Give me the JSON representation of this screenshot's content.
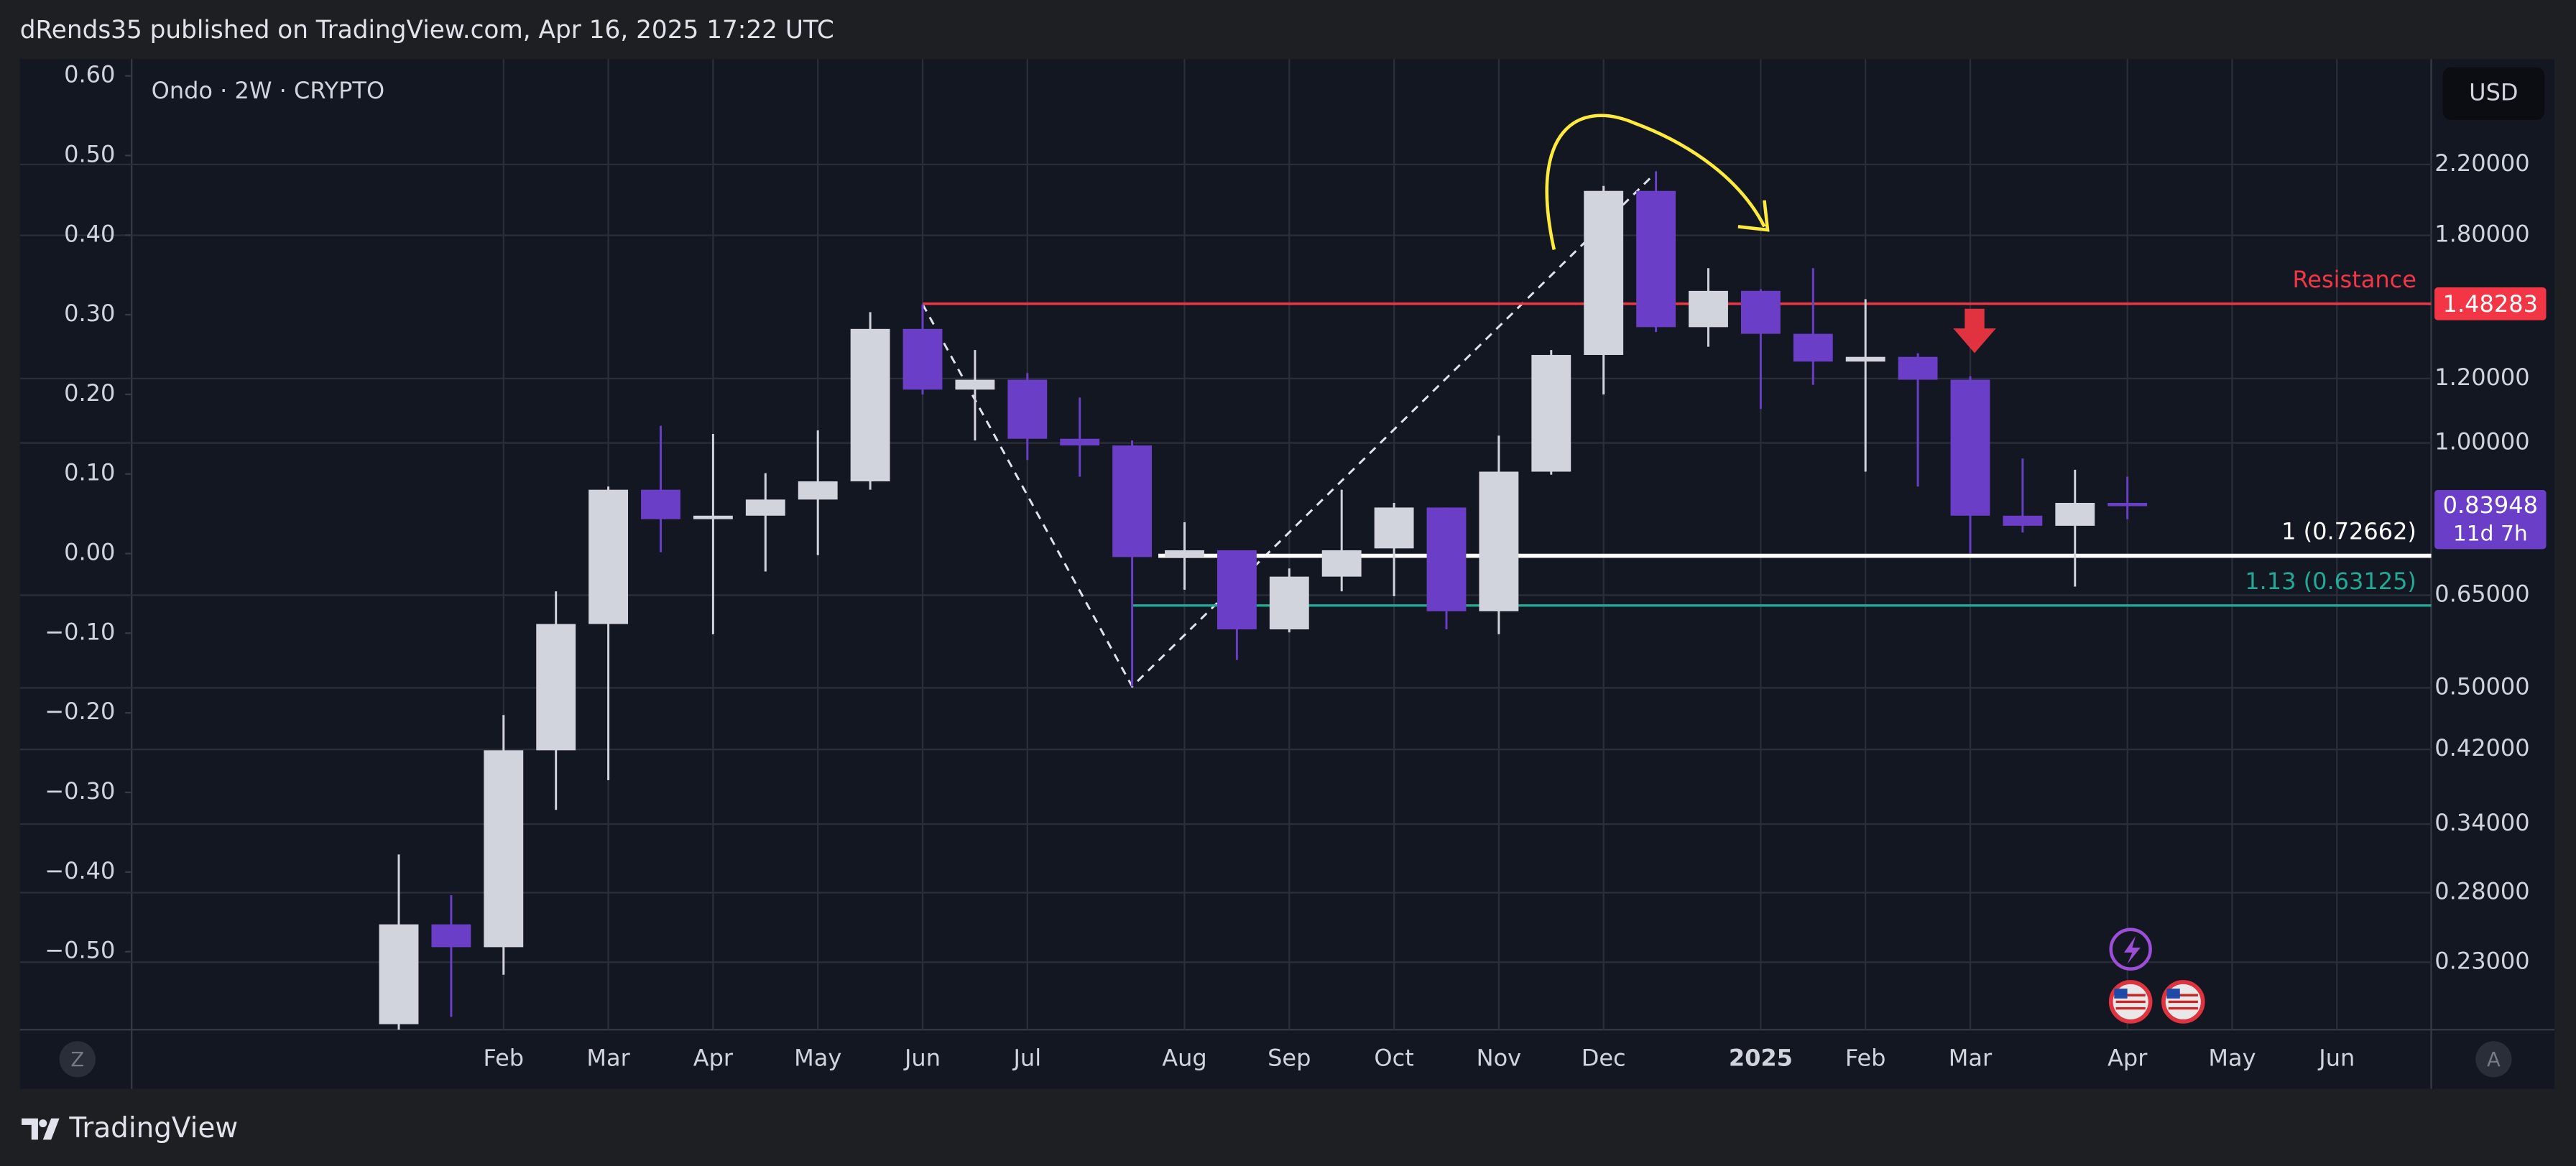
{
  "header": "dRends35 published on TradingView.com, Apr 16, 2025 17:22 UTC",
  "footer_brand": "TradingView",
  "buttons": {
    "left": "Z",
    "right": "A"
  },
  "chart_data": {
    "type": "candlestick",
    "title": "Ondo · 2W · CRYPTO",
    "currency": "USD",
    "categories": [
      null,
      null,
      null,
      null,
      null,
      null,
      null,
      null,
      null,
      null,
      null,
      null,
      null,
      null,
      null,
      null,
      null,
      null,
      null,
      null,
      null,
      null,
      null,
      null,
      null,
      null,
      null,
      null,
      null,
      null,
      null,
      null,
      null,
      null
    ],
    "open": [
      0.193,
      0.256,
      0.24,
      0.419,
      0.599,
      0.876,
      0.806,
      0.814,
      0.852,
      0.897,
      1.381,
      1.163,
      1.196,
      1.012,
      0.993,
      0.724,
      0.738,
      0.59,
      0.685,
      0.742,
      0.833,
      0.621,
      0.922,
      1.283,
      2.041,
      1.388,
      1.538,
      1.362,
      1.259,
      1.276,
      1.196,
      0.814,
      0.791,
      0.844
    ],
    "high": [
      0.312,
      0.278,
      0.463,
      0.657,
      0.884,
      1.05,
      1.026,
      0.918,
      1.036,
      1.448,
      1.481,
      1.301,
      1.219,
      1.137,
      1.007,
      0.799,
      0.738,
      0.701,
      0.876,
      0.844,
      0.833,
      1.021,
      1.301,
      2.07,
      2.158,
      1.64,
      1.545,
      1.64,
      1.502,
      1.289,
      1.208,
      0.957,
      0.927,
      0.909
    ],
    "low": [
      0.19,
      0.197,
      0.222,
      0.354,
      0.385,
      0.734,
      0.582,
      0.695,
      0.728,
      0.876,
      1.147,
      1.007,
      0.953,
      0.909,
      0.502,
      0.66,
      0.541,
      0.585,
      0.657,
      0.648,
      0.59,
      0.582,
      0.914,
      1.147,
      1.369,
      1.313,
      1.101,
      1.179,
      0.922,
      0.884,
      0.731,
      0.776,
      0.666,
      0.806
    ],
    "close": [
      0.256,
      0.24,
      0.419,
      0.599,
      0.876,
      0.806,
      0.814,
      0.852,
      0.897,
      1.381,
      1.163,
      1.196,
      1.012,
      0.993,
      0.724,
      0.738,
      0.59,
      0.685,
      0.738,
      0.833,
      0.621,
      0.922,
      1.283,
      2.041,
      1.388,
      1.538,
      1.362,
      1.259,
      1.276,
      1.196,
      0.814,
      0.791,
      0.844,
      0.83948
    ],
    "up_color": "#d1d4dc",
    "down_color": "#6a3ec6",
    "xlim": [
      -5.1,
      38.8
    ],
    "xticks": [
      {
        "value": 2,
        "label": "Feb"
      },
      {
        "value": 4,
        "label": "Mar"
      },
      {
        "value": 6,
        "label": "Apr"
      },
      {
        "value": 8,
        "label": "May"
      },
      {
        "value": 10,
        "label": "Jun"
      },
      {
        "value": 12,
        "label": "Jul"
      },
      {
        "value": 15,
        "label": "Aug"
      },
      {
        "value": 17,
        "label": "Sep"
      },
      {
        "value": 19,
        "label": "Oct"
      },
      {
        "value": 21,
        "label": "Nov"
      },
      {
        "value": 23,
        "label": "Dec"
      },
      {
        "value": 26,
        "label": "2025"
      },
      {
        "value": 28,
        "label": "Feb"
      },
      {
        "value": 30,
        "label": "Mar"
      },
      {
        "value": 33,
        "label": "Apr"
      },
      {
        "value": 35,
        "label": "May"
      },
      {
        "value": 37,
        "label": "Jun"
      }
    ],
    "ylim": [
      0.19,
      2.95
    ],
    "log_scale": true,
    "yticks": [
      {
        "value": 2.2,
        "label": "2.20000"
      },
      {
        "value": 1.8,
        "label": "1.80000"
      },
      {
        "value": 1.2,
        "label": "1.20000"
      },
      {
        "value": 1.0,
        "label": "1.00000"
      },
      {
        "value": 0.65,
        "label": "0.65000"
      },
      {
        "value": 0.5,
        "label": "0.50000"
      },
      {
        "value": 0.42,
        "label": "0.42000"
      },
      {
        "value": 0.34,
        "label": "0.34000"
      },
      {
        "value": 0.28,
        "label": "0.28000"
      },
      {
        "value": 0.23,
        "label": "0.23000"
      }
    ],
    "y2lim": [
      -0.598,
      0.619
    ],
    "y2ticks": [
      {
        "value": 0.6,
        "label": "0.60"
      },
      {
        "value": 0.5,
        "label": "0.50"
      },
      {
        "value": 0.4,
        "label": "0.40"
      },
      {
        "value": 0.3,
        "label": "0.30"
      },
      {
        "value": 0.2,
        "label": "0.20"
      },
      {
        "value": 0.1,
        "label": "0.10"
      },
      {
        "value": 0,
        "label": "0.00"
      },
      {
        "value": -0.1,
        "label": "−0.10"
      },
      {
        "value": -0.2,
        "label": "−0.20"
      },
      {
        "value": -0.3,
        "label": "−0.30"
      },
      {
        "value": -0.4,
        "label": "−0.40"
      },
      {
        "value": -0.5,
        "label": "−0.50"
      }
    ],
    "grid": true,
    "last_price_label": "0.83948",
    "countdown": "11d 7h",
    "last_color": "#6a3ec6",
    "levels": [
      {
        "name": "Resistance",
        "value": 1.48283,
        "value_label": "1.48283",
        "color": "#f23645",
        "start": 10
      },
      {
        "name": "1 (0.72662)",
        "value": 0.72662,
        "color": "#ffffff",
        "start": 14.5
      },
      {
        "name": "1.13 (0.63125)",
        "value": 0.63125,
        "color": "#22ab94",
        "start": 14
      }
    ],
    "trend_path": {
      "x": [
        10,
        14,
        23.9
      ],
      "y": [
        1.481,
        0.502,
        2.119
      ],
      "color": "#e0e3eb"
    }
  }
}
